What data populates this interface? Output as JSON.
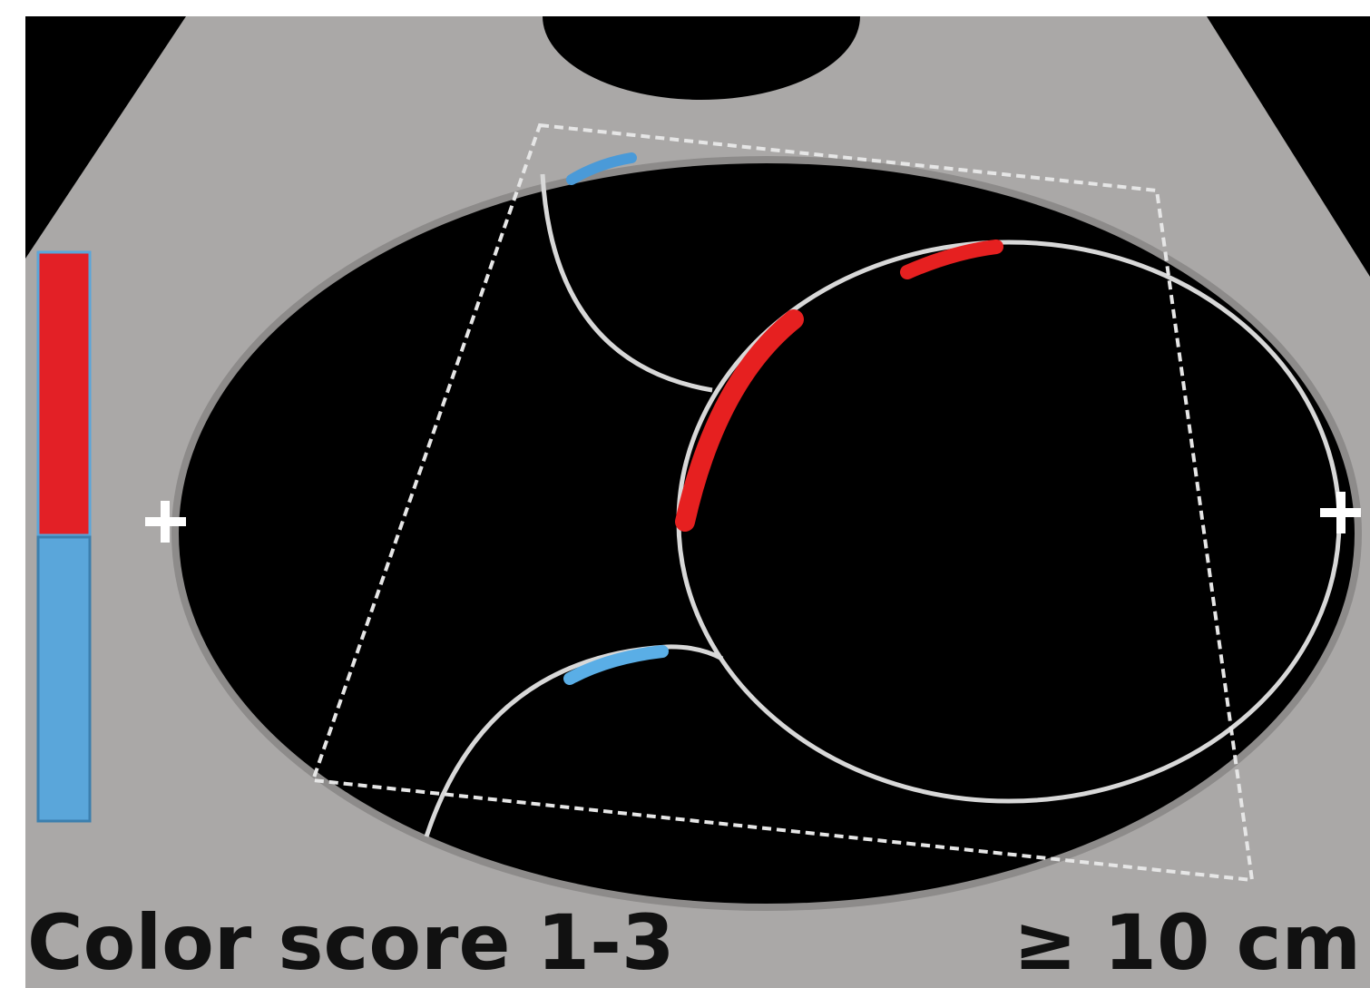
{
  "labels": {
    "left": "Color score 1-3",
    "right": "≥ 10 cm"
  }
}
